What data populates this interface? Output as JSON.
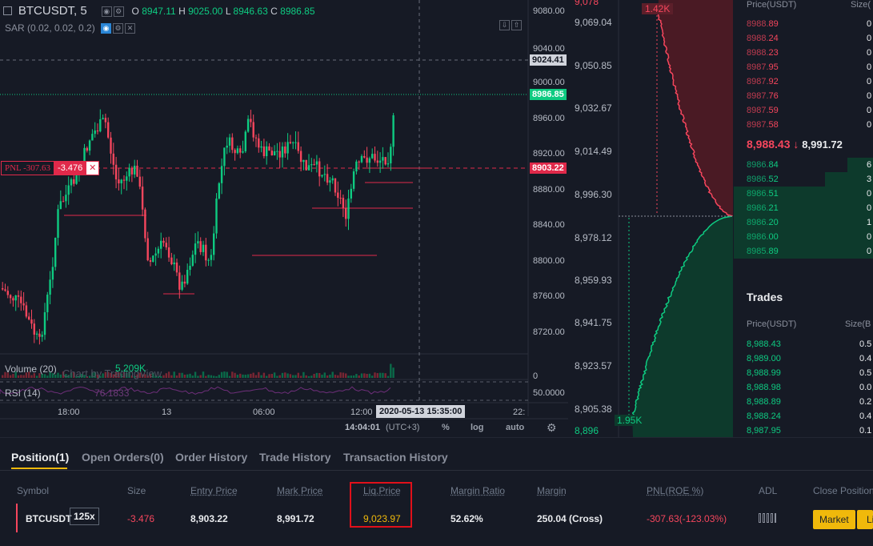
{
  "chart": {
    "symbol": "BTCUSDT, 5",
    "ohlc": {
      "o_label": "O",
      "o": "8947.11",
      "h_label": "H",
      "h": "9025.00",
      "l_label": "L",
      "l": "8946.63",
      "c_label": "C",
      "c": "8986.85"
    },
    "sar_label": "SAR (0.02, 0.02, 0.2)",
    "price_axis": [
      "9080.00",
      "9040.00",
      "9000.00",
      "8960.00",
      "8920.00",
      "8880.00",
      "8840.00",
      "8800.00",
      "8760.00",
      "8720.00"
    ],
    "tags": {
      "crosshair": "9024.41",
      "last": "8986.85",
      "entry": "8903.22",
      "zero": "0",
      "rsi": "50.0000"
    },
    "pnl_label": "PNL -307.63",
    "pnl_qty": "-3.476",
    "volume_label": "Volume (20)",
    "volume_value": "5.209K",
    "watermark": "Chart by TradingView",
    "rsi_label": "RSI (14)",
    "rsi_value": "76.1833",
    "time_axis": [
      "18:00",
      "13",
      "06:00",
      "12:00",
      "22:"
    ],
    "crosshair_time": "2020-05-13 15:35:00",
    "clock": "14:04:01",
    "tz": "(UTC+3)",
    "pct_btn": "%",
    "log_btn": "log",
    "auto_btn": "auto",
    "colors": {
      "up": "#0ecb81",
      "down": "#f6465d",
      "entry": "#e0294a",
      "accent": "#f0b90b"
    }
  },
  "depth": {
    "ask_label": "1.42K",
    "bid_label": "1.95K",
    "axis": [
      "9,069.04",
      "9,050.85",
      "9,032.67",
      "9,014.49",
      "8,996.30",
      "8,978.12",
      "8,959.93",
      "8,941.75",
      "8,923.57",
      "8,905.38"
    ],
    "top_cut": "9,078",
    "bottom_cut": "8,896"
  },
  "book": {
    "price_header": "Price(USDT)",
    "size_header": "Size(",
    "asks": [
      {
        "p1": "8988.",
        "p2": "89",
        "s": "0"
      },
      {
        "p1": "8988.",
        "p2": "24",
        "s": "0"
      },
      {
        "p1": "8988.",
        "p2": "23",
        "s": "0"
      },
      {
        "p1": "8987.",
        "p2": "95",
        "s": "0"
      },
      {
        "p1": "8987.",
        "p2": "92",
        "s": "0"
      },
      {
        "p1": "8987.",
        "p2": "76",
        "s": "0"
      },
      {
        "p1": "8987.",
        "p2": "59",
        "s": "0"
      },
      {
        "p1": "8987.",
        "p2": "58",
        "s": "0"
      }
    ],
    "last_price": "8,988.43",
    "arrow": "↓",
    "mark_price": "8,991.72",
    "bids": [
      {
        "p1": "8986.",
        "p2": "84",
        "s": "6"
      },
      {
        "p1": "8986.",
        "p2": "52",
        "s": "3"
      },
      {
        "p1": "8986.",
        "p2": "51",
        "s": "0"
      },
      {
        "p1": "8986.",
        "p2": "21",
        "s": "0"
      },
      {
        "p1": "8986.",
        "p2": "20",
        "s": "1"
      },
      {
        "p1": "8986.",
        "p2": "00",
        "s": "0"
      },
      {
        "p1": "8985.",
        "p2": "89",
        "s": "0"
      }
    ],
    "trades_title": "Trades",
    "trades_price_header": "Price(USDT)",
    "trades_size_header": "Size(B",
    "trades": [
      {
        "p": "8,988.43",
        "s": "0.5"
      },
      {
        "p": "8,989.00",
        "s": "0.4"
      },
      {
        "p": "8,988.99",
        "s": "0.5"
      },
      {
        "p": "8,988.98",
        "s": "0.0"
      },
      {
        "p": "8,988.89",
        "s": "0.2"
      },
      {
        "p": "8,988.24",
        "s": "0.4"
      },
      {
        "p": "8,987.95",
        "s": "0.1"
      }
    ]
  },
  "positions": {
    "tabs": [
      "Position(1)",
      "Open Orders(0)",
      "Order History",
      "Trade History",
      "Transaction History"
    ],
    "headers": [
      "Symbol",
      "Size",
      "Entry Price",
      "Mark Price",
      "Liq.Price",
      "Margin Ratio",
      "Margin",
      "PNL(ROE %)",
      "ADL",
      "Close Position"
    ],
    "row": {
      "symbol": "BTCUSDT",
      "leverage": "125x",
      "size": "-3.476",
      "entry": "8,903.22",
      "mark": "8,991.72",
      "liq": "9,023.97",
      "margin_ratio": "52.62%",
      "margin": "250.04 (Cross)",
      "pnl": "-307.63(-123.03%)",
      "market_btn": "Market",
      "limit_btn": "Li"
    }
  }
}
